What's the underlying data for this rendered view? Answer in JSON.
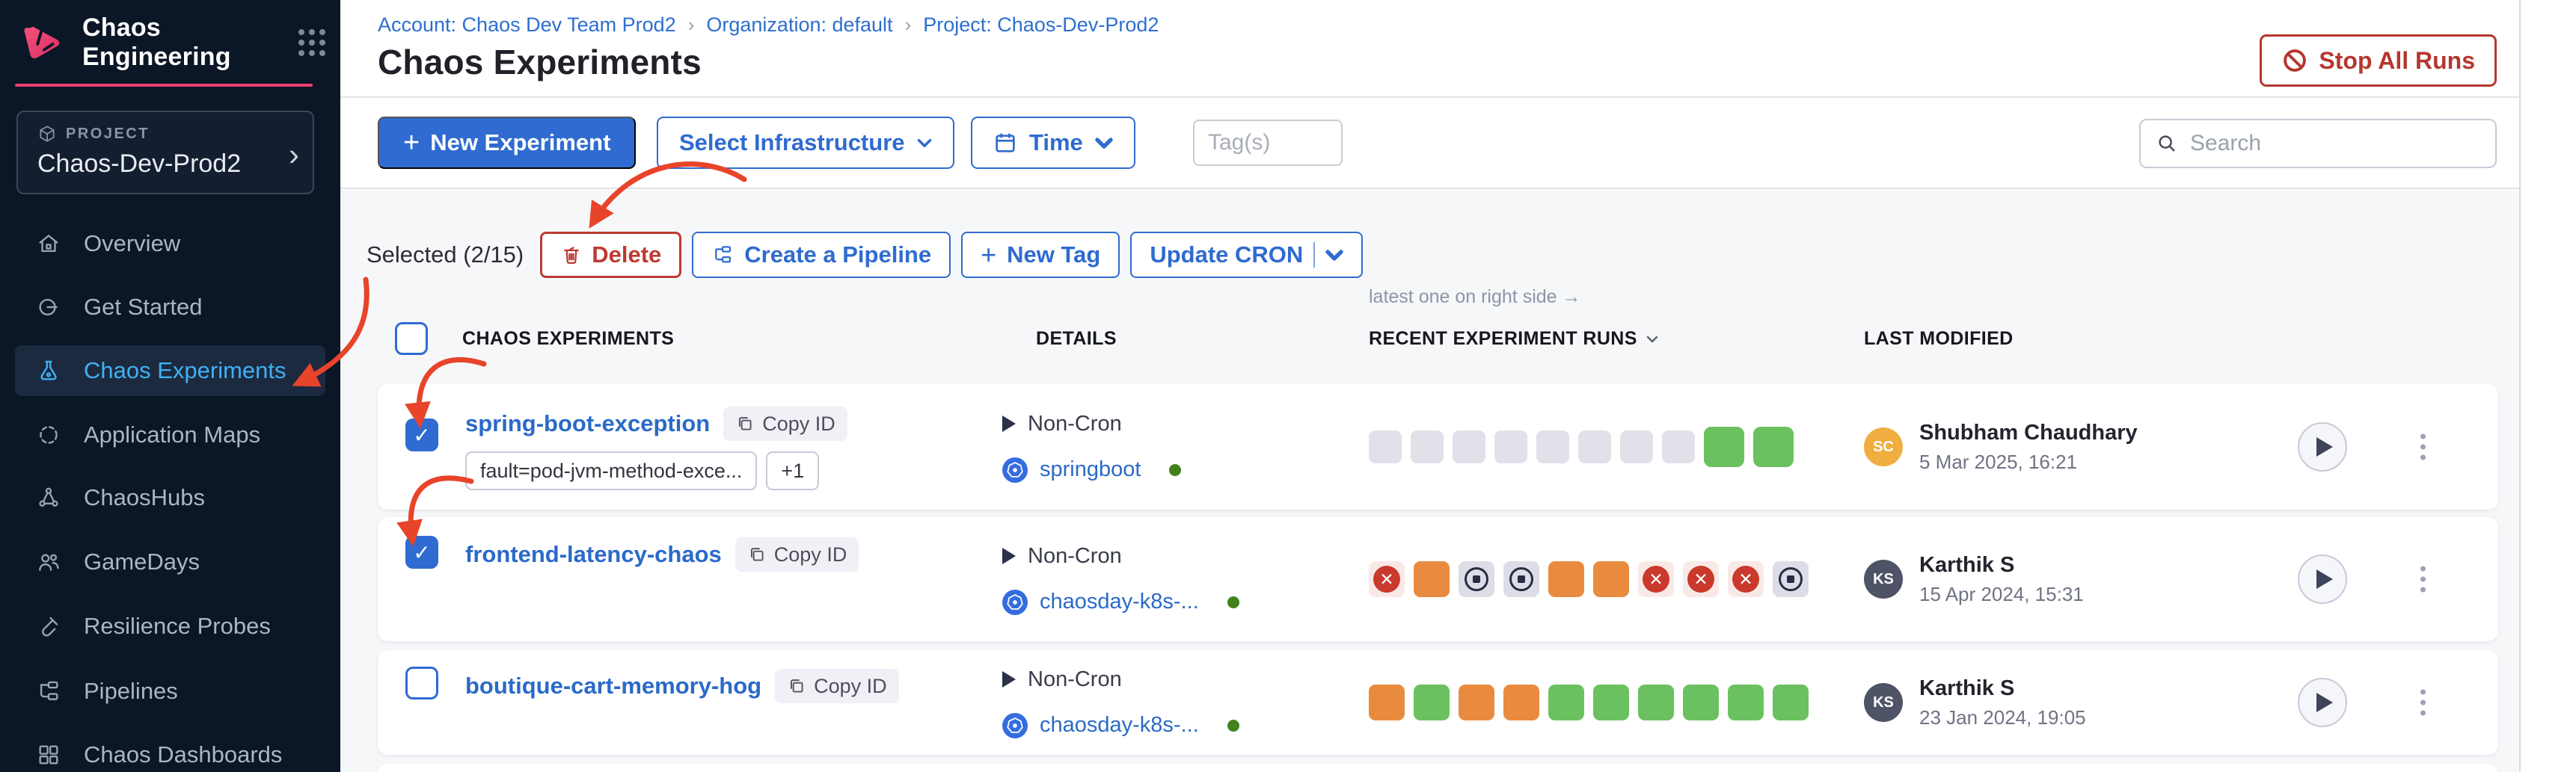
{
  "brand": {
    "app_title": "Chaos Engineering"
  },
  "sidebar": {
    "project_label": "PROJECT",
    "project_name": "Chaos-Dev-Prod2",
    "items": [
      {
        "label": "Overview",
        "icon": "home-icon",
        "active": false
      },
      {
        "label": "Get Started",
        "icon": "get-started-icon",
        "active": false
      },
      {
        "label": "Chaos Experiments",
        "icon": "flask-icon",
        "active": true
      },
      {
        "label": "Application Maps",
        "icon": "target-icon",
        "active": false
      },
      {
        "label": "ChaosHubs",
        "icon": "network-icon",
        "active": false
      },
      {
        "label": "GameDays",
        "icon": "people-icon",
        "active": false
      },
      {
        "label": "Resilience Probes",
        "icon": "test-tube-icon",
        "active": false
      },
      {
        "label": "Pipelines",
        "icon": "pipeline-icon",
        "active": false
      },
      {
        "label": "Chaos Dashboards",
        "icon": "dashboard-icon",
        "active": false
      }
    ]
  },
  "header": {
    "breadcrumb": [
      "Account: Chaos Dev Team Prod2",
      "Organization: default",
      "Project: Chaos-Dev-Prod2"
    ],
    "title": "Chaos Experiments",
    "stop_all_runs": "Stop All Runs"
  },
  "toolbar": {
    "new_experiment": "New Experiment",
    "select_infrastructure": "Select Infrastructure",
    "time": "Time",
    "tags_placeholder": "Tag(s)",
    "search_placeholder": "Search"
  },
  "selection": {
    "label": "Selected (2/15)",
    "delete": "Delete",
    "create_pipeline": "Create a Pipeline",
    "new_tag": "New Tag",
    "update_cron": "Update CRON"
  },
  "table": {
    "hint": "latest one on right side →",
    "columns": [
      "CHAOS EXPERIMENTS",
      "DETAILS",
      "RECENT EXPERIMENT RUNS",
      "LAST MODIFIED"
    ],
    "copy_id": "Copy ID",
    "rows": [
      {
        "name": "spring-boot-exception",
        "selected": true,
        "tags": [
          "fault=pod-jvm-method-exce...",
          "+1"
        ],
        "schedule": "Non-Cron",
        "infrastructure": "springboot",
        "runs": [
          "empty",
          "empty",
          "empty",
          "empty",
          "empty",
          "empty",
          "empty",
          "empty",
          "passed-lg",
          "passed-lg"
        ],
        "modified_by": "Shubham Chaudhary",
        "initials": "SC",
        "avatar_color": "#efae3f",
        "date": "5 Mar 2025, 16:21"
      },
      {
        "name": "frontend-latency-chaos",
        "selected": true,
        "schedule": "Non-Cron",
        "infrastructure": "chaosday-k8s-...",
        "runs": [
          "failed",
          "running",
          "stopped",
          "stopped",
          "running",
          "running",
          "failed",
          "failed",
          "failed",
          "stopped"
        ],
        "modified_by": "Karthik S",
        "initials": "KS",
        "avatar_color": "#4e5466",
        "date": "15 Apr 2024, 15:31"
      },
      {
        "name": "boutique-cart-memory-hog",
        "selected": false,
        "schedule": "Non-Cron",
        "infrastructure": "chaosday-k8s-...",
        "runs": [
          "running",
          "passed",
          "running",
          "running",
          "passed",
          "passed",
          "passed",
          "passed",
          "passed",
          "passed"
        ],
        "modified_by": "Karthik S",
        "initials": "KS",
        "avatar_color": "#4e5466",
        "date": "23 Jan 2024, 19:05"
      }
    ]
  },
  "colors": {
    "accent_blue": "#2f6bd0",
    "link_blue": "#2a6ac8",
    "sidebar_bg": "#0b1626",
    "active_nav": "#41b0f2",
    "brand_pink": "#f13c6e",
    "danger_red": "#b5372f",
    "annotation_red": "#e8442a",
    "run_passed": "#6bc160",
    "run_running": "#e98b3e",
    "run_failed": "#c9392c",
    "status_dot_green": "#43811d"
  }
}
